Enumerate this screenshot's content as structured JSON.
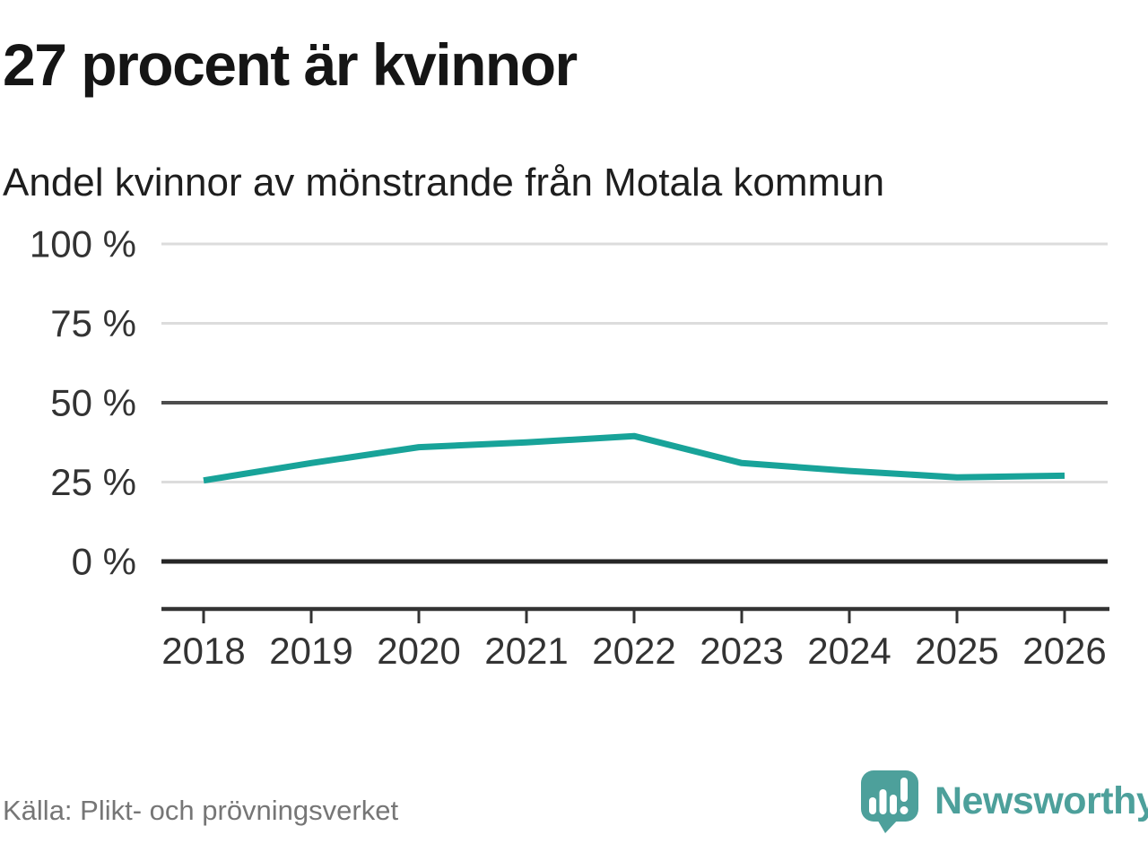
{
  "header": {
    "note": ""
  },
  "footer": {
    "source": "Källa: Plikt- och prövningsverket",
    "brand": "Newsworthy"
  },
  "colors": {
    "line": "#18A399",
    "brand_teal": "#4DA09B",
    "grid_light": "#DCDCDC",
    "grid_medium": "#4D4D4D",
    "grid_zero": "#262626",
    "axis": "#333333",
    "tick_label": "#333333",
    "title_text": "#151515",
    "source_text": "#767676"
  },
  "chart_data": {
    "type": "line",
    "title": "27 procent är kvinnor",
    "subtitle": "Andel kvinnor av mönstrande från Motala kommun",
    "x": [
      2018,
      2019,
      2020,
      2021,
      2022,
      2023,
      2024,
      2025,
      2026
    ],
    "x_tick_labels": [
      "2018",
      "2019",
      "2020",
      "2021",
      "2022",
      "2023",
      "2024",
      "2025",
      "2026"
    ],
    "series": [
      {
        "name": "Andel kvinnor av mönstrande",
        "values": [
          25.5,
          31,
          36,
          37.5,
          39.5,
          31,
          28.5,
          26.5,
          27
        ],
        "unit": "%",
        "color": "#18A399"
      }
    ],
    "ylim": [
      0,
      100
    ],
    "yticks": [
      {
        "value": 0,
        "label": "0 %",
        "weight": "strong"
      },
      {
        "value": 25,
        "label": "25 %",
        "weight": "light"
      },
      {
        "value": 50,
        "label": "50 %",
        "weight": "medium"
      },
      {
        "value": 75,
        "label": "75 %",
        "weight": "light"
      },
      {
        "value": 100,
        "label": "100 %",
        "weight": "light"
      }
    ],
    "grid": "horizontal",
    "legend": "none"
  }
}
